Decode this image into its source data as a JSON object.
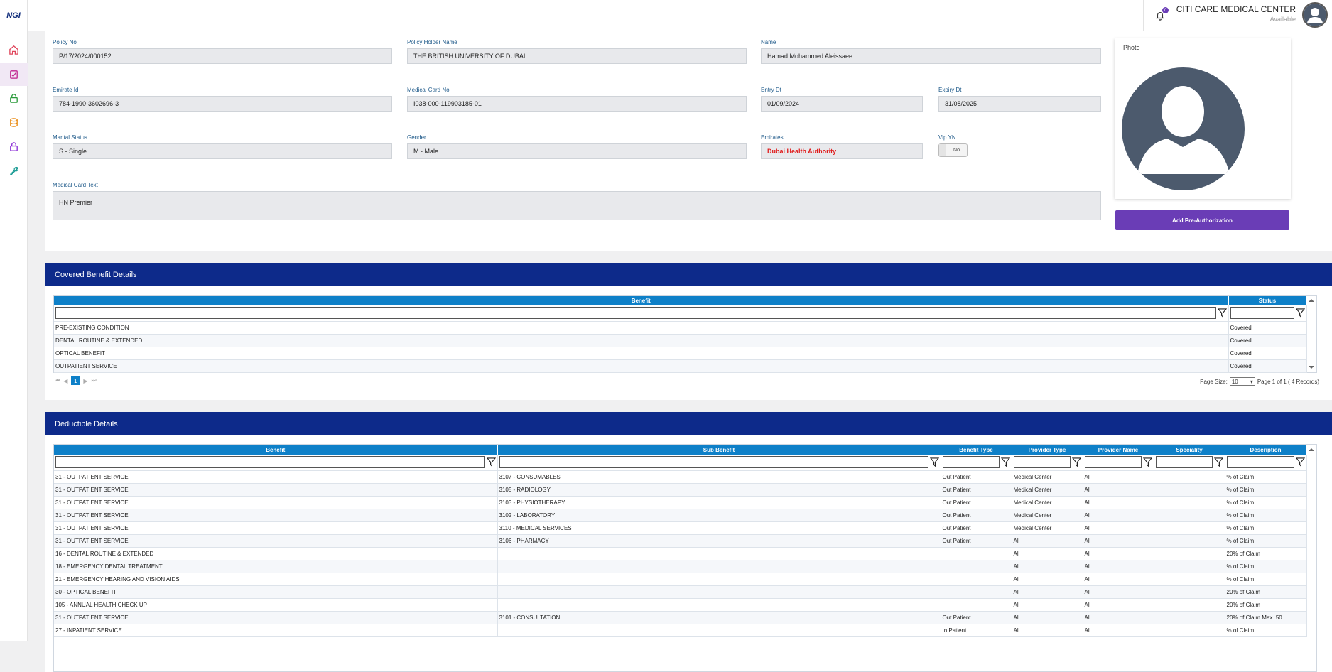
{
  "app": {
    "logo": "NGI"
  },
  "header": {
    "notification_count": "0",
    "center_name": "CITI CARE MEDICAL CENTER",
    "status": "Available"
  },
  "member": {
    "policy_no": {
      "label": "Policy No",
      "value": "P/17/2024/000152"
    },
    "policy_holder": {
      "label": "Policy Holder Name",
      "value": "THE BRITISH UNIVERSITY OF DUBAI"
    },
    "name": {
      "label": "Name",
      "value": "Hamad Mohammed Aleissaee"
    },
    "emirate_id": {
      "label": "Emirate Id",
      "value": "784-1990-3602696-3"
    },
    "medical_card_no": {
      "label": "Medical Card No",
      "value": "I038-000-119903185-01"
    },
    "entry_dt": {
      "label": "Entry Dt",
      "value": "01/09/2024"
    },
    "expiry_dt": {
      "label": "Expiry Dt",
      "value": "31/08/2025"
    },
    "marital_status": {
      "label": "Marital Status",
      "value": "S - Single"
    },
    "gender": {
      "label": "Gender",
      "value": "M - Male"
    },
    "emirates": {
      "label": "Emirates",
      "value": "Dubai Health Authority"
    },
    "vip": {
      "label": "Vip YN",
      "value": "No"
    },
    "medical_card_text": {
      "label": "Medical Card Text",
      "value": "HN Premier"
    }
  },
  "photo": {
    "label": "Photo"
  },
  "actions": {
    "add_preauth": "Add Pre-Authorization"
  },
  "covered": {
    "title": "Covered Benefit Details",
    "columns": [
      "Benefit",
      "Status"
    ],
    "rows": [
      [
        "PRE-EXISTING CONDITION",
        "Covered"
      ],
      [
        "DENTAL ROUTINE & EXTENDED",
        "Covered"
      ],
      [
        "OPTICAL BENEFIT",
        "Covered"
      ],
      [
        "OUTPATIENT SERVICE",
        "Covered"
      ]
    ],
    "pager": {
      "current": "1",
      "page_size_label": "Page Size:",
      "page_size": "10",
      "info": "Page 1 of 1 ( 4 Records)"
    }
  },
  "deductible": {
    "title": "Deductible Details",
    "columns": [
      "Benefit",
      "Sub Benefit",
      "Benefit Type",
      "Provider Type",
      "Provider Name",
      "Speciality",
      "Description"
    ],
    "rows": [
      [
        "31 - OUTPATIENT SERVICE",
        "3107 - CONSUMABLES",
        "Out Patient",
        "Medical Center",
        "All",
        "",
        "% of Claim"
      ],
      [
        "31 - OUTPATIENT SERVICE",
        "3105 - RADIOLOGY",
        "Out Patient",
        "Medical Center",
        "All",
        "",
        "% of Claim"
      ],
      [
        "31 - OUTPATIENT SERVICE",
        "3103 - PHYSIOTHERAPY",
        "Out Patient",
        "Medical Center",
        "All",
        "",
        "% of Claim"
      ],
      [
        "31 - OUTPATIENT SERVICE",
        "3102 - LABORATORY",
        "Out Patient",
        "Medical Center",
        "All",
        "",
        "% of Claim"
      ],
      [
        "31 - OUTPATIENT SERVICE",
        "3110 - MEDICAL SERVICES",
        "Out Patient",
        "Medical Center",
        "All",
        "",
        "% of Claim"
      ],
      [
        "31 - OUTPATIENT SERVICE",
        "3106 - PHARMACY",
        "Out Patient",
        "All",
        "All",
        "",
        "% of Claim"
      ],
      [
        "16 - DENTAL ROUTINE & EXTENDED",
        "",
        "",
        "All",
        "All",
        "",
        "20% of Claim"
      ],
      [
        "18 - EMERGENCY DENTAL TREATMENT",
        "",
        "",
        "All",
        "All",
        "",
        "% of Claim"
      ],
      [
        "21 - EMERGENCY HEARING AND VISION AIDS",
        "",
        "",
        "All",
        "All",
        "",
        "% of Claim"
      ],
      [
        "30 - OPTICAL BENEFIT",
        "",
        "",
        "All",
        "All",
        "",
        "20% of Claim"
      ],
      [
        "105 - ANNUAL HEALTH CHECK UP",
        "",
        "",
        "All",
        "All",
        "",
        "20% of Claim"
      ],
      [
        "31 - OUTPATIENT SERVICE",
        "3101 - CONSULTATION",
        "Out Patient",
        "All",
        "All",
        "",
        "20% of Claim Max. 50"
      ],
      [
        "27 - INPATIENT SERVICE",
        "",
        "In Patient",
        "All",
        "All",
        "",
        "% of Claim"
      ]
    ]
  }
}
